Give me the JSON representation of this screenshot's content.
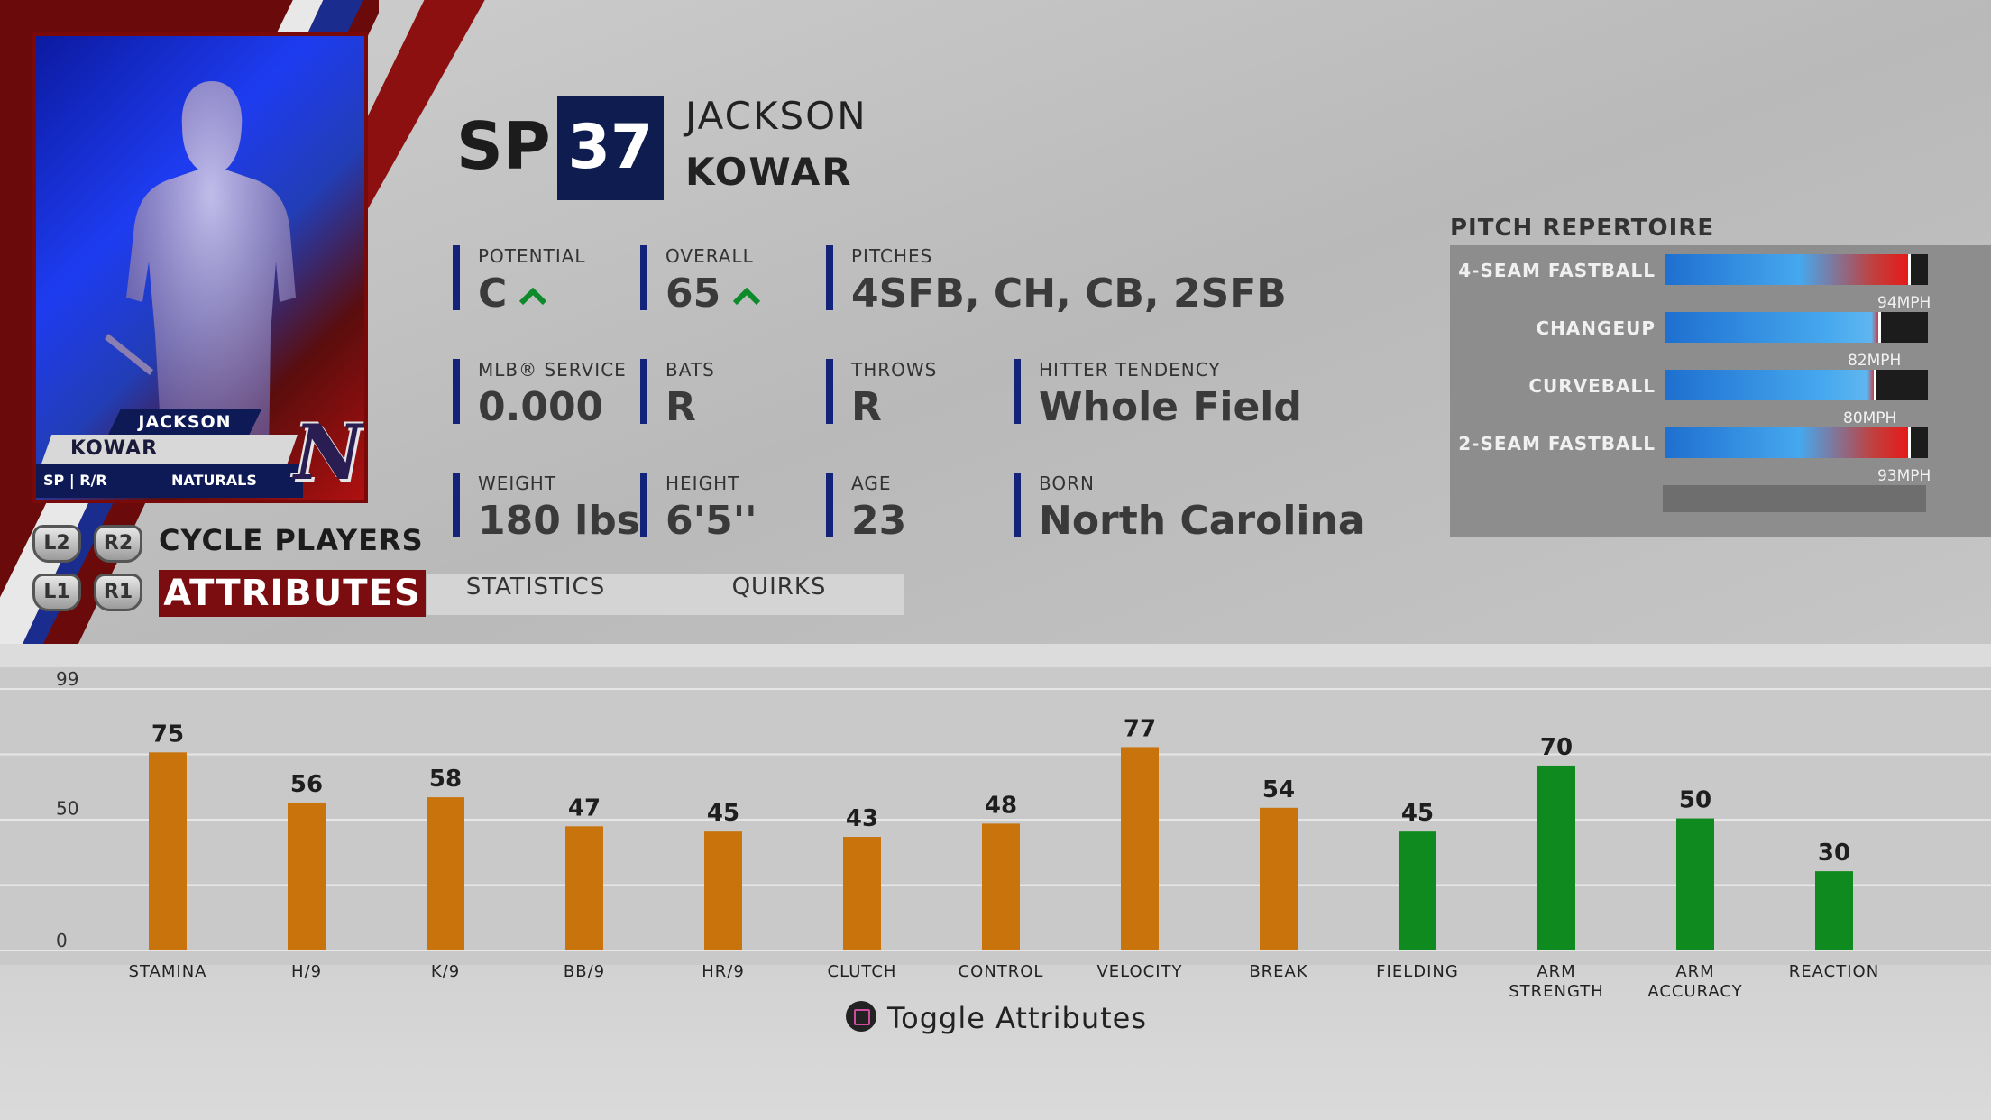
{
  "player": {
    "position": "SP",
    "number": "37",
    "first_name": "JACKSON",
    "last_name": "KOWAR"
  },
  "card": {
    "first_name": "JACKSON",
    "last_name": "KOWAR",
    "pos_bats_throws": "SP | R/R",
    "team": "NATURALS",
    "logo_letter": "N"
  },
  "stats": {
    "potential": {
      "label": "POTENTIAL",
      "value": "C"
    },
    "overall": {
      "label": "OVERALL",
      "value": "65"
    },
    "pitches": {
      "label": "PITCHES",
      "value": "4SFB, CH, CB, 2SFB"
    },
    "service": {
      "label": "MLB® SERVICE",
      "value": "0.000"
    },
    "bats": {
      "label": "BATS",
      "value": "R"
    },
    "throws": {
      "label": "THROWS",
      "value": "R"
    },
    "hitter_tendency": {
      "label": "HITTER TENDENCY",
      "value": "Whole Field"
    },
    "weight": {
      "label": "WEIGHT",
      "value": "180 lbs"
    },
    "height": {
      "label": "HEIGHT",
      "value": "6'5''"
    },
    "age": {
      "label": "AGE",
      "value": "23"
    },
    "born": {
      "label": "BORN",
      "value": "North Carolina"
    }
  },
  "controls": {
    "l2": "L2",
    "r2": "R2",
    "l1": "L1",
    "r1": "R1",
    "cycle_label": "CYCLE PLAYERS"
  },
  "tabs": {
    "active": "ATTRIBUTES",
    "statistics": "STATISTICS",
    "quirks": "QUIRKS"
  },
  "repertoire": {
    "title": "PITCH REPERTOIRE",
    "pitches": [
      {
        "name": "4-SEAM FASTBALL",
        "speed": "94MPH",
        "level": 0.93
      },
      {
        "name": "CHANGEUP",
        "speed": "82MPH",
        "level": 0.82
      },
      {
        "name": "CURVEBALL",
        "speed": "80MPH",
        "level": 0.8
      },
      {
        "name": "2-SEAM FASTBALL",
        "speed": "93MPH",
        "level": 0.93
      }
    ]
  },
  "toggle_label": "Toggle Attributes",
  "chart_data": {
    "type": "bar",
    "categories": [
      "STAMINA",
      "H/9",
      "K/9",
      "BB/9",
      "HR/9",
      "CLUTCH",
      "CONTROL",
      "VELOCITY",
      "BREAK",
      "FIELDING",
      "ARM STRENGTH",
      "ARM ACCURACY",
      "REACTION"
    ],
    "values": [
      75,
      56,
      58,
      47,
      45,
      43,
      48,
      77,
      54,
      45,
      70,
      50,
      30
    ],
    "ylim": [
      0,
      99
    ],
    "yticks": [
      "0",
      "50",
      "99"
    ],
    "colors": {
      "pitching": "#c8730c",
      "fielding": "#0f8a1e"
    },
    "bar_groups": [
      "pitching",
      "pitching",
      "pitching",
      "pitching",
      "pitching",
      "pitching",
      "pitching",
      "pitching",
      "pitching",
      "fielding",
      "fielding",
      "fielding",
      "fielding"
    ],
    "grid": true
  }
}
